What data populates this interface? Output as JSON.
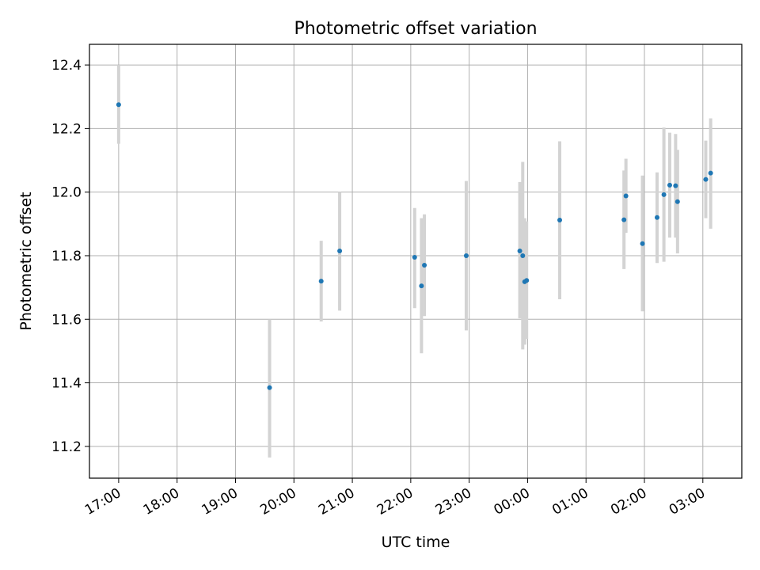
{
  "chart_data": {
    "type": "scatter",
    "title": "Photometric offset variation",
    "xlabel": "UTC time",
    "ylabel": "Photometric offset",
    "grid": true,
    "xlim": [
      "16:30",
      "03:40"
    ],
    "ylim": [
      11.1,
      12.465
    ],
    "x_ticks": [
      "17:00",
      "18:00",
      "19:00",
      "20:00",
      "21:00",
      "22:00",
      "23:00",
      "00:00",
      "01:00",
      "02:00",
      "03:00"
    ],
    "y_ticks": [
      "11.2",
      "11.4",
      "11.6",
      "11.8",
      "12.0",
      "12.2",
      "12.4"
    ],
    "colors": {
      "point": "#1f77b4",
      "errorbar": "#d3d3d3",
      "grid": "#b0b0b0"
    },
    "points": [
      {
        "x": "17:00",
        "y": 12.275,
        "err_low": 12.152,
        "err_high": 12.4
      },
      {
        "x": "19:35",
        "y": 11.385,
        "err_low": 11.165,
        "err_high": 11.6
      },
      {
        "x": "20:28",
        "y": 11.72,
        "err_low": 11.593,
        "err_high": 11.847
      },
      {
        "x": "20:47",
        "y": 11.815,
        "err_low": 11.627,
        "err_high": 12.0
      },
      {
        "x": "22:04",
        "y": 11.795,
        "err_low": 11.635,
        "err_high": 11.95
      },
      {
        "x": "22:11",
        "y": 11.705,
        "err_low": 11.493,
        "err_high": 11.918
      },
      {
        "x": "22:14",
        "y": 11.77,
        "err_low": 11.61,
        "err_high": 11.93
      },
      {
        "x": "22:57",
        "y": 11.8,
        "err_low": 11.565,
        "err_high": 12.035
      },
      {
        "x": "23:52",
        "y": 11.815,
        "err_low": 11.603,
        "err_high": 12.032
      },
      {
        "x": "23:55",
        "y": 11.8,
        "err_low": 11.505,
        "err_high": 12.095
      },
      {
        "x": "23:57",
        "y": 11.718,
        "err_low": 11.52,
        "err_high": 11.918
      },
      {
        "x": "23:59",
        "y": 11.722,
        "err_low": 11.538,
        "err_high": 11.908
      },
      {
        "x": "00:33",
        "y": 11.912,
        "err_low": 11.663,
        "err_high": 12.16
      },
      {
        "x": "01:39",
        "y": 11.913,
        "err_low": 11.758,
        "err_high": 12.068
      },
      {
        "x": "01:41",
        "y": 11.988,
        "err_low": 11.872,
        "err_high": 12.105
      },
      {
        "x": "01:58",
        "y": 11.838,
        "err_low": 11.625,
        "err_high": 12.052
      },
      {
        "x": "02:13",
        "y": 11.92,
        "err_low": 11.777,
        "err_high": 12.062
      },
      {
        "x": "02:20",
        "y": 11.992,
        "err_low": 11.781,
        "err_high": 12.203
      },
      {
        "x": "02:26",
        "y": 12.022,
        "err_low": 11.857,
        "err_high": 12.187
      },
      {
        "x": "02:32",
        "y": 12.02,
        "err_low": 11.857,
        "err_high": 12.183
      },
      {
        "x": "02:34",
        "y": 11.97,
        "err_low": 11.807,
        "err_high": 12.133
      },
      {
        "x": "03:03",
        "y": 12.04,
        "err_low": 11.918,
        "err_high": 12.162
      },
      {
        "x": "03:08",
        "y": 12.06,
        "err_low": 11.885,
        "err_high": 12.232
      }
    ]
  }
}
